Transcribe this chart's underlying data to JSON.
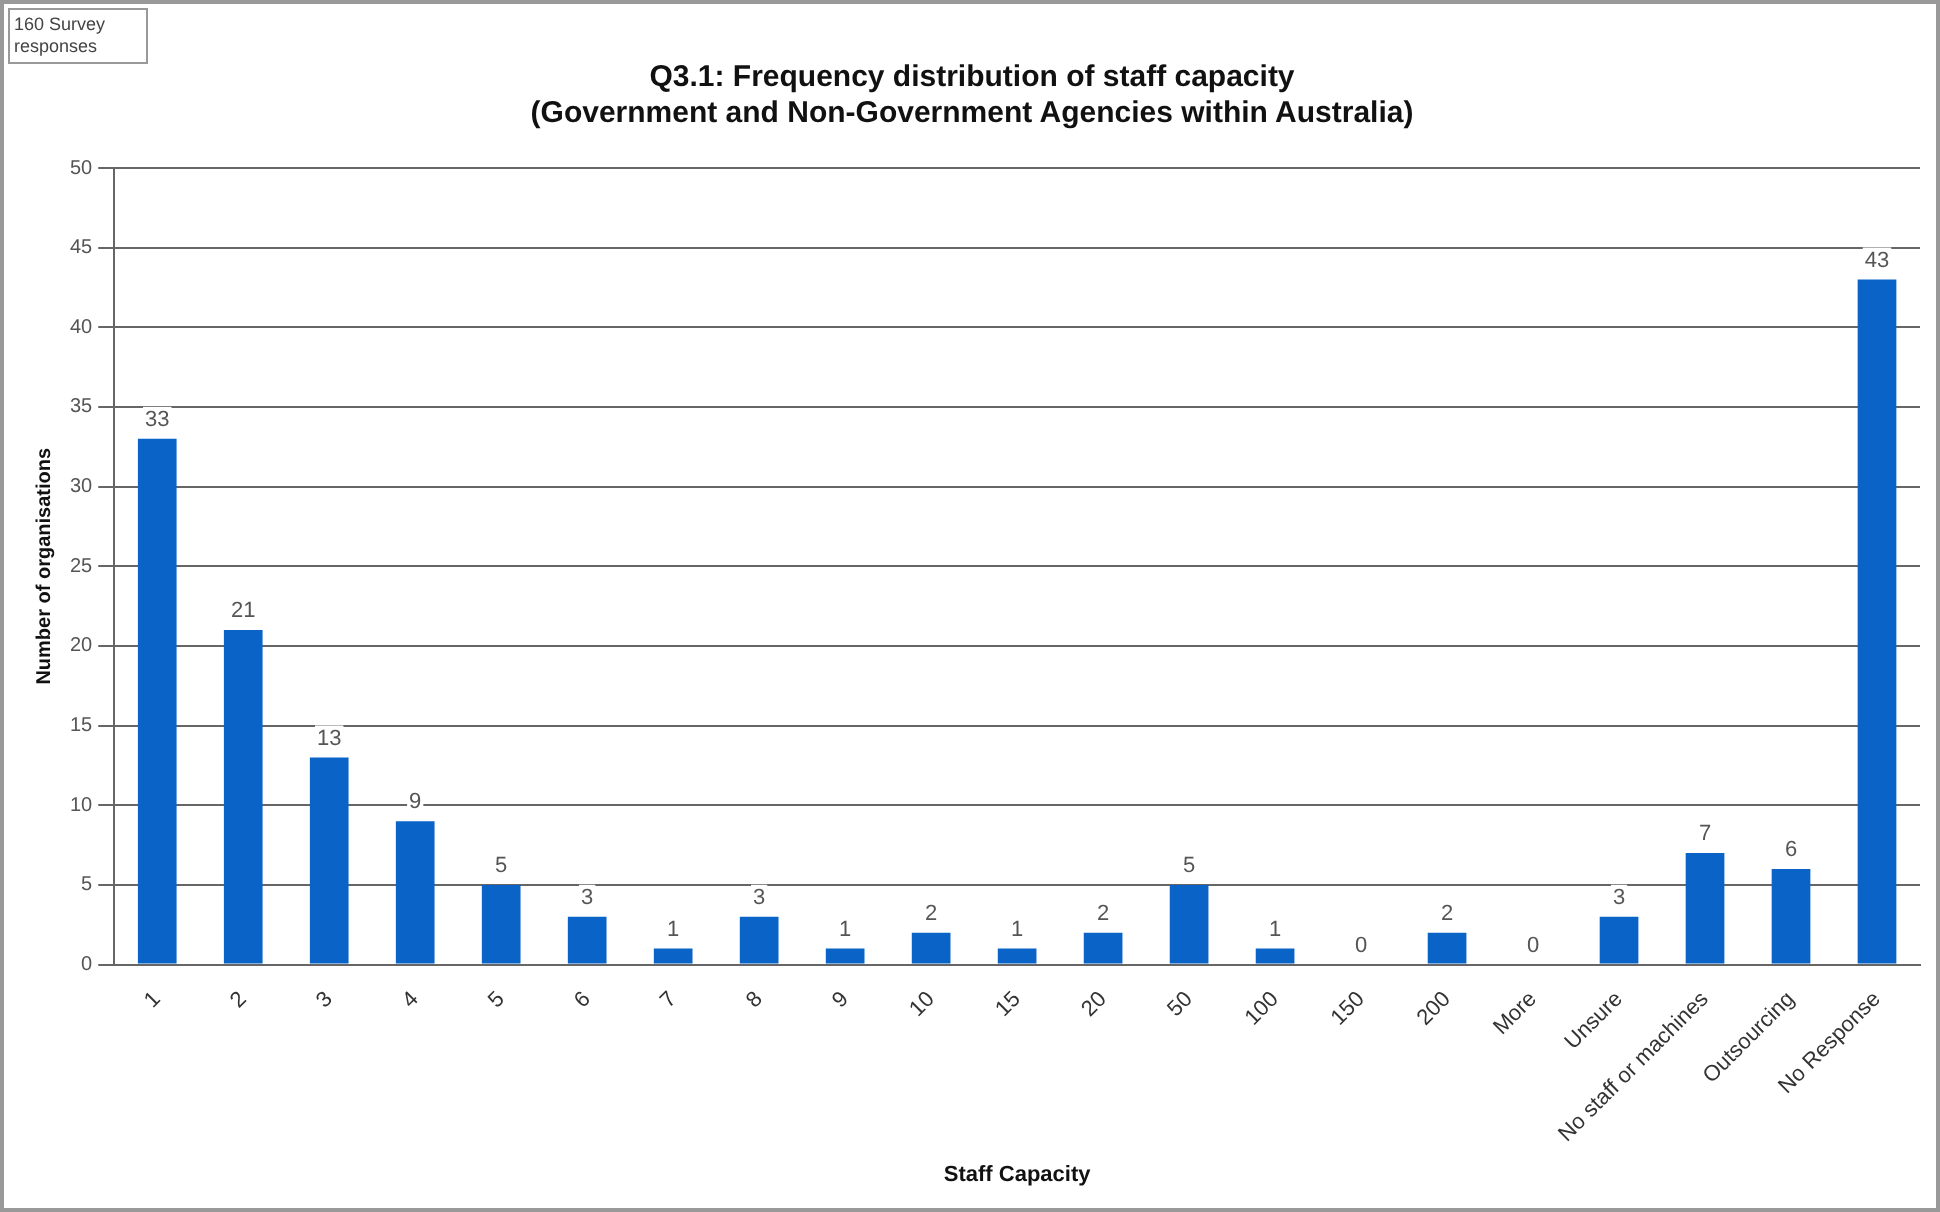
{
  "chart_data": {
    "type": "bar",
    "title": [
      "Q3.1: Frequency distribution of staff capacity",
      "(Government and Non-Government Agencies within Australia)"
    ],
    "xlabel": "Staff Capacity",
    "ylabel": "Number of organisations",
    "annotations": [
      "160 Survey responses"
    ],
    "categories": [
      "1",
      "2",
      "3",
      "4",
      "5",
      "6",
      "7",
      "8",
      "9",
      "10",
      "15",
      "20",
      "50",
      "100",
      "150",
      "200",
      "More",
      "Unsure",
      "No staff or machines",
      "Outsourcing",
      "No Response"
    ],
    "values": [
      33,
      21,
      13,
      9,
      5,
      3,
      1,
      3,
      1,
      2,
      1,
      2,
      5,
      1,
      0,
      2,
      0,
      3,
      7,
      6,
      43
    ],
    "color": "#0a64c8",
    "ylim": [
      0,
      50
    ],
    "yticks": [
      0,
      5,
      10,
      15,
      20,
      25,
      30,
      35,
      40,
      45,
      50
    ],
    "grid": "y",
    "legend": false,
    "data_labels": true
  }
}
